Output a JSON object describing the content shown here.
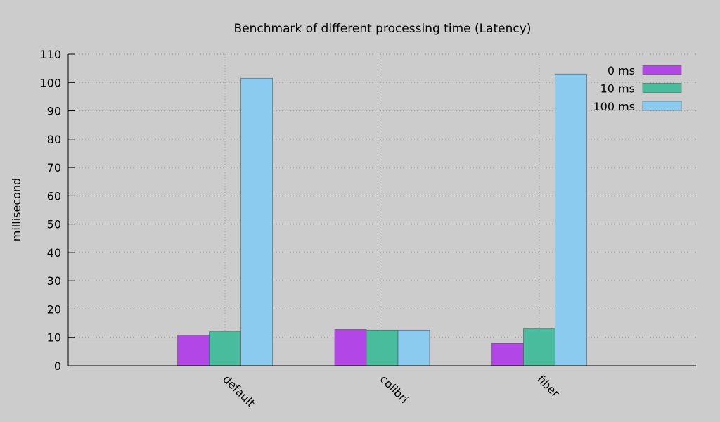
{
  "chart_data": {
    "type": "bar",
    "title": "Benchmark of different processing time (Latency)",
    "xlabel": "",
    "ylabel": "millisecond",
    "ylim": [
      0,
      110
    ],
    "yticks": [
      0,
      10,
      20,
      30,
      40,
      50,
      60,
      70,
      80,
      90,
      100,
      110
    ],
    "categories": [
      "default",
      "colibri",
      "fiber"
    ],
    "series": [
      {
        "name": "0 ms",
        "color": "#b246e6",
        "values": [
          10.8,
          12.8,
          7.9
        ]
      },
      {
        "name": "10 ms",
        "color": "#48bc9c",
        "values": [
          12.0,
          12.6,
          13.0
        ]
      },
      {
        "name": "100 ms",
        "color": "#8acbef",
        "values": [
          101.5,
          12.6,
          103.0
        ]
      }
    ],
    "grid": true,
    "legend_position": "top-right",
    "background": "#cccccc"
  }
}
